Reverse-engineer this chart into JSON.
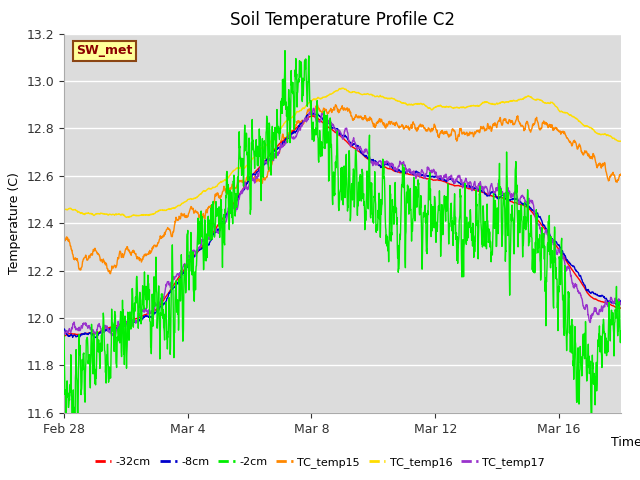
{
  "title": "Soil Temperature Profile C2",
  "xlabel": "Time",
  "ylabel": "Temperature (C)",
  "ylim": [
    11.6,
    13.2
  ],
  "yticks": [
    11.6,
    11.8,
    12.0,
    12.2,
    12.4,
    12.6,
    12.8,
    13.0,
    13.2
  ],
  "bg_color": "#dcdcdc",
  "fig_color": "#ffffff",
  "annotation_text": "SW_met",
  "annotation_bg": "#ffff99",
  "annotation_border": "#8B4513",
  "series_colors": {
    "-32cm": "#ff0000",
    "-8cm": "#0000cc",
    "-2cm": "#00ee00",
    "TC_temp15": "#ff8800",
    "TC_temp16": "#ffdd00",
    "TC_temp17": "#9933cc"
  },
  "legend_labels": [
    "-32cm",
    "-8cm",
    "-2cm",
    "TC_temp15",
    "TC_temp16",
    "TC_temp17"
  ],
  "x_tick_labels": [
    "Feb 28",
    "Mar 4",
    "Mar 8",
    "Mar 12",
    "Mar 16"
  ],
  "x_tick_positions": [
    0,
    4,
    8,
    12,
    16
  ],
  "line_width": 1.0
}
